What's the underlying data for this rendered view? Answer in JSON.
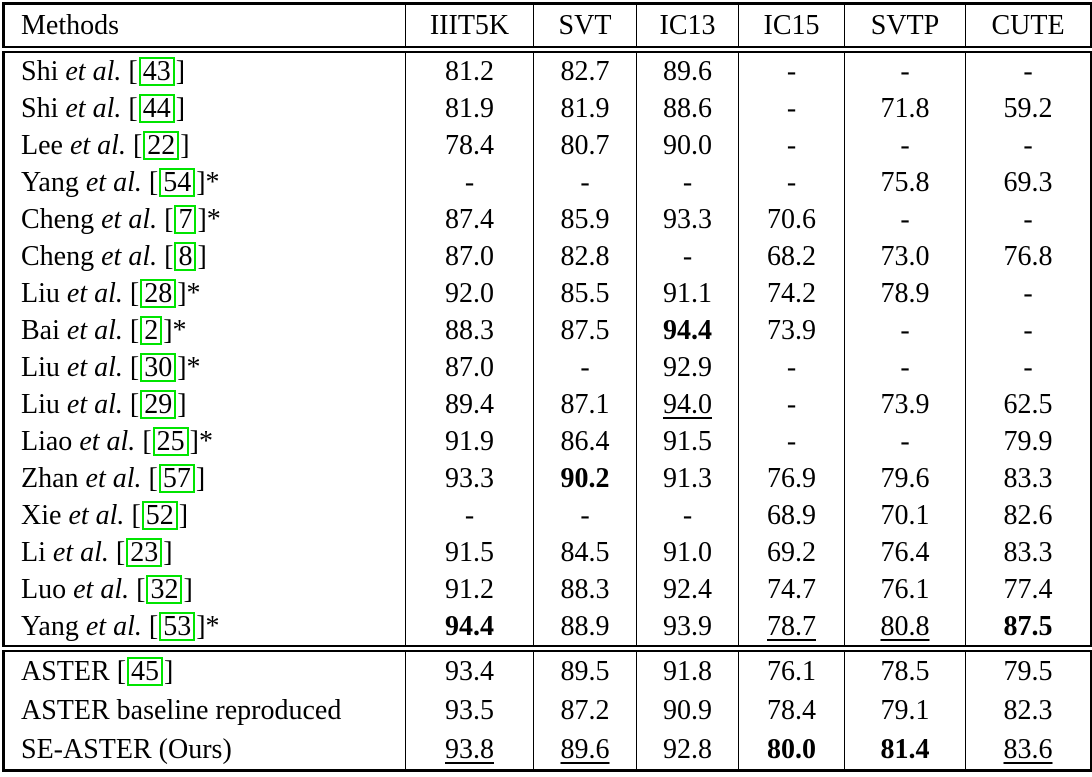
{
  "colors": {
    "citation_box_border": "#00e400",
    "text": "#000000",
    "rule": "#000000",
    "background": "#ffffff"
  },
  "table": {
    "columns": [
      "Methods",
      "IIIT5K",
      "SVT",
      "IC13",
      "IC15",
      "SVTP",
      "CUTE"
    ],
    "et_al_label": "et al.",
    "cite_open": "[",
    "cite_close": "]",
    "star_mark": "*",
    "missing_mark": "-",
    "groups": [
      {
        "name": "prior-methods",
        "rows": [
          {
            "name": "Shi",
            "etal": true,
            "cite": "43",
            "star": false,
            "cells": [
              {
                "v": "81.2",
                "s": "plain"
              },
              {
                "v": "82.7",
                "s": "plain"
              },
              {
                "v": "89.6",
                "s": "plain"
              },
              {
                "v": "-",
                "s": "plain"
              },
              {
                "v": "-",
                "s": "plain"
              },
              {
                "v": "-",
                "s": "plain"
              }
            ]
          },
          {
            "name": "Shi",
            "etal": true,
            "cite": "44",
            "star": false,
            "cells": [
              {
                "v": "81.9",
                "s": "plain"
              },
              {
                "v": "81.9",
                "s": "plain"
              },
              {
                "v": "88.6",
                "s": "plain"
              },
              {
                "v": "-",
                "s": "plain"
              },
              {
                "v": "71.8",
                "s": "plain"
              },
              {
                "v": "59.2",
                "s": "plain"
              }
            ]
          },
          {
            "name": "Lee",
            "etal": true,
            "cite": "22",
            "star": false,
            "cells": [
              {
                "v": "78.4",
                "s": "plain"
              },
              {
                "v": "80.7",
                "s": "plain"
              },
              {
                "v": "90.0",
                "s": "plain"
              },
              {
                "v": "-",
                "s": "plain"
              },
              {
                "v": "-",
                "s": "plain"
              },
              {
                "v": "-",
                "s": "plain"
              }
            ]
          },
          {
            "name": "Yang",
            "etal": true,
            "cite": "54",
            "star": true,
            "cells": [
              {
                "v": "-",
                "s": "plain"
              },
              {
                "v": "-",
                "s": "plain"
              },
              {
                "v": "-",
                "s": "plain"
              },
              {
                "v": "-",
                "s": "plain"
              },
              {
                "v": "75.8",
                "s": "plain"
              },
              {
                "v": "69.3",
                "s": "plain"
              }
            ]
          },
          {
            "name": "Cheng",
            "etal": true,
            "cite": "7",
            "star": true,
            "cells": [
              {
                "v": "87.4",
                "s": "plain"
              },
              {
                "v": "85.9",
                "s": "plain"
              },
              {
                "v": "93.3",
                "s": "plain"
              },
              {
                "v": "70.6",
                "s": "plain"
              },
              {
                "v": "-",
                "s": "plain"
              },
              {
                "v": "-",
                "s": "plain"
              }
            ]
          },
          {
            "name": "Cheng",
            "etal": true,
            "cite": "8",
            "star": false,
            "cells": [
              {
                "v": "87.0",
                "s": "plain"
              },
              {
                "v": "82.8",
                "s": "plain"
              },
              {
                "v": "-",
                "s": "plain"
              },
              {
                "v": "68.2",
                "s": "plain"
              },
              {
                "v": "73.0",
                "s": "plain"
              },
              {
                "v": "76.8",
                "s": "plain"
              }
            ]
          },
          {
            "name": "Liu",
            "etal": true,
            "cite": "28",
            "star": true,
            "cells": [
              {
                "v": "92.0",
                "s": "plain"
              },
              {
                "v": "85.5",
                "s": "plain"
              },
              {
                "v": "91.1",
                "s": "plain"
              },
              {
                "v": "74.2",
                "s": "plain"
              },
              {
                "v": "78.9",
                "s": "plain"
              },
              {
                "v": "-",
                "s": "plain"
              }
            ]
          },
          {
            "name": "Bai",
            "etal": true,
            "cite": "2",
            "star": true,
            "cells": [
              {
                "v": "88.3",
                "s": "plain"
              },
              {
                "v": "87.5",
                "s": "plain"
              },
              {
                "v": "94.4",
                "s": "bold"
              },
              {
                "v": "73.9",
                "s": "plain"
              },
              {
                "v": "-",
                "s": "plain"
              },
              {
                "v": "-",
                "s": "plain"
              }
            ]
          },
          {
            "name": "Liu",
            "etal": true,
            "cite": "30",
            "star": true,
            "cells": [
              {
                "v": "87.0",
                "s": "plain"
              },
              {
                "v": "-",
                "s": "plain"
              },
              {
                "v": "92.9",
                "s": "plain"
              },
              {
                "v": "-",
                "s": "plain"
              },
              {
                "v": "-",
                "s": "plain"
              },
              {
                "v": "-",
                "s": "plain"
              }
            ]
          },
          {
            "name": "Liu",
            "etal": true,
            "cite": "29",
            "star": false,
            "cells": [
              {
                "v": "89.4",
                "s": "plain"
              },
              {
                "v": "87.1",
                "s": "plain"
              },
              {
                "v": "94.0",
                "s": "underline"
              },
              {
                "v": "-",
                "s": "plain"
              },
              {
                "v": "73.9",
                "s": "plain"
              },
              {
                "v": "62.5",
                "s": "plain"
              }
            ]
          },
          {
            "name": "Liao",
            "etal": true,
            "cite": "25",
            "star": true,
            "cells": [
              {
                "v": "91.9",
                "s": "plain"
              },
              {
                "v": "86.4",
                "s": "plain"
              },
              {
                "v": "91.5",
                "s": "plain"
              },
              {
                "v": "-",
                "s": "plain"
              },
              {
                "v": "-",
                "s": "plain"
              },
              {
                "v": "79.9",
                "s": "plain"
              }
            ]
          },
          {
            "name": "Zhan",
            "etal": true,
            "cite": "57",
            "star": false,
            "cells": [
              {
                "v": "93.3",
                "s": "plain"
              },
              {
                "v": "90.2",
                "s": "bold"
              },
              {
                "v": "91.3",
                "s": "plain"
              },
              {
                "v": "76.9",
                "s": "plain"
              },
              {
                "v": "79.6",
                "s": "plain"
              },
              {
                "v": "83.3",
                "s": "plain"
              }
            ]
          },
          {
            "name": "Xie",
            "etal": true,
            "cite": "52",
            "star": false,
            "cells": [
              {
                "v": "-",
                "s": "plain"
              },
              {
                "v": "-",
                "s": "plain"
              },
              {
                "v": "-",
                "s": "plain"
              },
              {
                "v": "68.9",
                "s": "plain"
              },
              {
                "v": "70.1",
                "s": "plain"
              },
              {
                "v": "82.6",
                "s": "plain"
              }
            ]
          },
          {
            "name": "Li",
            "etal": true,
            "cite": "23",
            "star": false,
            "cells": [
              {
                "v": "91.5",
                "s": "plain"
              },
              {
                "v": "84.5",
                "s": "plain"
              },
              {
                "v": "91.0",
                "s": "plain"
              },
              {
                "v": "69.2",
                "s": "plain"
              },
              {
                "v": "76.4",
                "s": "plain"
              },
              {
                "v": "83.3",
                "s": "plain"
              }
            ]
          },
          {
            "name": "Luo",
            "etal": true,
            "cite": "32",
            "star": false,
            "cells": [
              {
                "v": "91.2",
                "s": "plain"
              },
              {
                "v": "88.3",
                "s": "plain"
              },
              {
                "v": "92.4",
                "s": "plain"
              },
              {
                "v": "74.7",
                "s": "plain"
              },
              {
                "v": "76.1",
                "s": "plain"
              },
              {
                "v": "77.4",
                "s": "plain"
              }
            ]
          },
          {
            "name": "Yang",
            "etal": true,
            "cite": "53",
            "star": true,
            "cells": [
              {
                "v": "94.4",
                "s": "bold"
              },
              {
                "v": "88.9",
                "s": "plain"
              },
              {
                "v": "93.9",
                "s": "plain"
              },
              {
                "v": "78.7",
                "s": "underline"
              },
              {
                "v": "80.8",
                "s": "underline"
              },
              {
                "v": "87.5",
                "s": "bold"
              }
            ]
          }
        ]
      },
      {
        "name": "aster-group",
        "rows": [
          {
            "name": "ASTER",
            "etal": false,
            "cite": "45",
            "star": false,
            "cells": [
              {
                "v": "93.4",
                "s": "plain"
              },
              {
                "v": "89.5",
                "s": "plain"
              },
              {
                "v": "91.8",
                "s": "plain"
              },
              {
                "v": "76.1",
                "s": "plain"
              },
              {
                "v": "78.5",
                "s": "plain"
              },
              {
                "v": "79.5",
                "s": "plain"
              }
            ]
          },
          {
            "name": "ASTER baseline reproduced",
            "etal": false,
            "cite": null,
            "star": false,
            "cells": [
              {
                "v": "93.5",
                "s": "plain"
              },
              {
                "v": "87.2",
                "s": "plain"
              },
              {
                "v": "90.9",
                "s": "plain"
              },
              {
                "v": "78.4",
                "s": "plain"
              },
              {
                "v": "79.1",
                "s": "plain"
              },
              {
                "v": "82.3",
                "s": "plain"
              }
            ]
          },
          {
            "name": "SE-ASTER (Ours)",
            "etal": false,
            "cite": null,
            "star": false,
            "cells": [
              {
                "v": "93.8",
                "s": "underline"
              },
              {
                "v": "89.6",
                "s": "underline"
              },
              {
                "v": "92.8",
                "s": "plain"
              },
              {
                "v": "80.0",
                "s": "bold"
              },
              {
                "v": "81.4",
                "s": "bold"
              },
              {
                "v": "83.6",
                "s": "underline"
              }
            ]
          }
        ]
      }
    ]
  }
}
